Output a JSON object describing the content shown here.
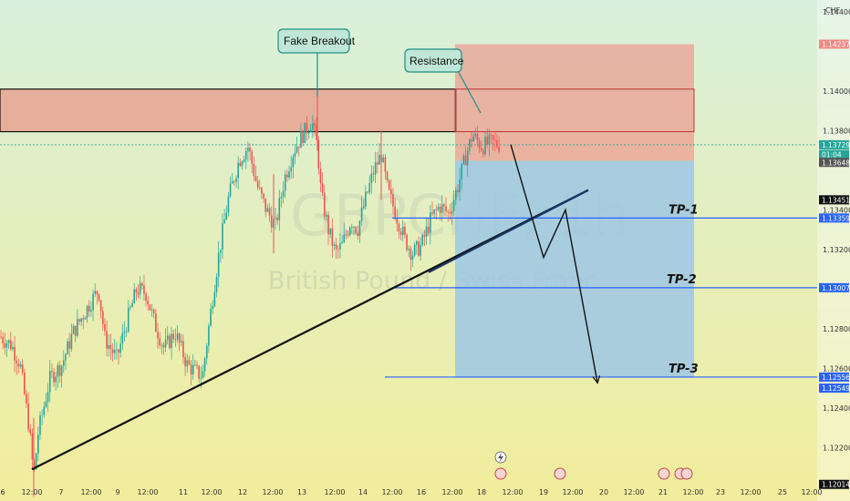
{
  "colors": {
    "bg_top": "#d9f0dc",
    "bg_bottom": "#f2ed9c",
    "candle_up": "#26a69a",
    "candle_down": "#ef5350",
    "resistance_zone": "#e7998a",
    "stop_zone": "#ee8a84",
    "target_zone": "#9ec7e4",
    "callout_fill": "#bfe6d6",
    "callout_stroke": "#1f8f83",
    "tp_line": "#2962ff",
    "trend_line": "#111111",
    "dark_line": "#1a3668"
  },
  "chart_data": {
    "type": "candlestick",
    "symbol_watermark": "GBPCHF, 1h",
    "name_watermark": "British Pound / Swiss Franc",
    "currency_label": "CHF",
    "ylim": [
      1.1193,
      1.1446
    ],
    "y_ticks": [
      "1.14400",
      "1.14000",
      "1.13800",
      "1.13400",
      "1.13200",
      "1.12800",
      "1.12600",
      "1.12400",
      "1.12200"
    ],
    "x_ticks": [
      "6",
      "12:00",
      "7",
      "12:00",
      "9",
      "12:00",
      "11",
      "12:00",
      "12",
      "12:00",
      "13",
      "12:00",
      "14",
      "12:00",
      "16",
      "12:00",
      "18",
      "12:00",
      "19",
      "12:00",
      "20",
      "12:00",
      "21",
      "12:00",
      "23",
      "12:00",
      "25",
      "12:00"
    ],
    "price_path": [
      [
        0,
        1.1276
      ],
      [
        12,
        1.1272
      ],
      [
        22,
        1.1262
      ],
      [
        32,
        1.123
      ],
      [
        37,
        1.1205
      ],
      [
        42,
        1.1228
      ],
      [
        55,
        1.1255
      ],
      [
        68,
        1.1262
      ],
      [
        80,
        1.1278
      ],
      [
        95,
        1.129
      ],
      [
        108,
        1.13
      ],
      [
        115,
        1.1275
      ],
      [
        128,
        1.1265
      ],
      [
        140,
        1.1285
      ],
      [
        150,
        1.13
      ],
      [
        160,
        1.1298
      ],
      [
        170,
        1.1282
      ],
      [
        180,
        1.127
      ],
      [
        192,
        1.1278
      ],
      [
        205,
        1.1262
      ],
      [
        215,
        1.1258
      ],
      [
        222,
        1.1256
      ],
      [
        232,
        1.1292
      ],
      [
        240,
        1.1318
      ],
      [
        250,
        1.1345
      ],
      [
        262,
        1.1365
      ],
      [
        272,
        1.1372
      ],
      [
        282,
        1.1352
      ],
      [
        292,
        1.134
      ],
      [
        302,
        1.1332
      ],
      [
        312,
        1.1356
      ],
      [
        322,
        1.137
      ],
      [
        332,
        1.1378
      ],
      [
        342,
        1.1385
      ],
      [
        348,
        1.1372
      ],
      [
        352,
        1.1348
      ],
      [
        360,
        1.133
      ],
      [
        368,
        1.1318
      ],
      [
        375,
        1.1322
      ],
      [
        385,
        1.1335
      ],
      [
        392,
        1.133
      ],
      [
        400,
        1.1344
      ],
      [
        410,
        1.136
      ],
      [
        418,
        1.1368
      ],
      [
        425,
        1.135
      ],
      [
        434,
        1.1338
      ],
      [
        444,
        1.1325
      ],
      [
        452,
        1.1318
      ],
      [
        462,
        1.1322
      ],
      [
        472,
        1.1335
      ],
      [
        482,
        1.1342
      ],
      [
        492,
        1.1338
      ],
      [
        502,
        1.1352
      ],
      [
        510,
        1.1366
      ],
      [
        518,
        1.1378
      ],
      [
        528,
        1.1372
      ],
      [
        538,
        1.1374
      ],
      [
        548,
        1.1373
      ]
    ],
    "annotations": [
      {
        "text": "Fake Breakout"
      },
      {
        "text": "Resistance"
      }
    ],
    "resistance_zone": {
      "top": 1.1401,
      "bottom": 1.13795
    },
    "trade": {
      "stop_top": 1.14237,
      "entry": 1.13648,
      "target_bottom": 1.12556
    },
    "take_profits": [
      {
        "label": "TP-1",
        "price": 1.13359
      },
      {
        "label": "TP-2",
        "price": 1.13007
      },
      {
        "label": "TP-3",
        "price": 1.12556
      }
    ],
    "trend_line": {
      "from": [
        35,
        1.1209
      ],
      "to": [
        645,
        1.135
      ]
    },
    "projection": [
      [
        560,
        1.1373
      ],
      [
        596,
        1.1316
      ],
      [
        620,
        1.134
      ],
      [
        655,
        1.1253
      ]
    ],
    "price_badges": [
      {
        "text": "1.14237",
        "bg": "#ef8a85",
        "price": 1.14237
      },
      {
        "text": "1.13729",
        "bg": "#26a69a",
        "price": 1.13729
      },
      {
        "text": "01:04",
        "bg": "#26a69a",
        "price": 1.1368
      },
      {
        "text": "1.13648",
        "bg": "#555555",
        "price": 1.1364
      },
      {
        "text": "1.13451",
        "bg": "#111111",
        "price": 1.13451
      },
      {
        "text": "1.13359",
        "bg": "#2962ff",
        "price": 1.13359
      },
      {
        "text": "1.13007",
        "bg": "#2962ff",
        "price": 1.13007
      },
      {
        "text": "1.12556",
        "bg": "#2962ff",
        "price": 1.12556
      },
      {
        "text": "1.12549",
        "bg": "#2962ff",
        "price": 1.125
      },
      {
        "text": "1.12014",
        "bg": "#111111",
        "price": 1.12014
      }
    ]
  }
}
